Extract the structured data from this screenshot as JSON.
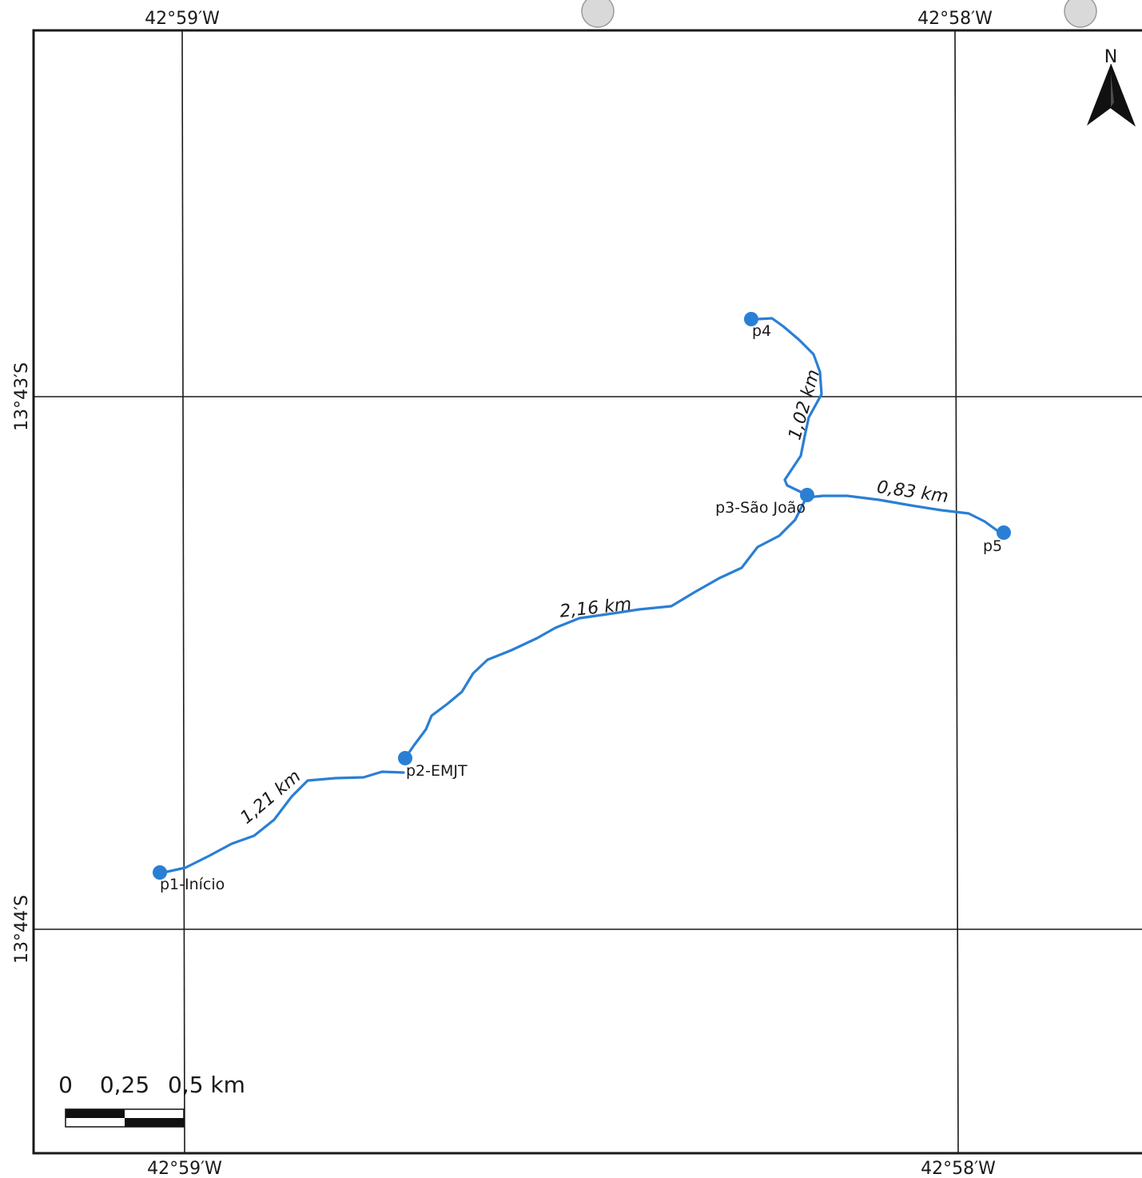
{
  "map": {
    "north_label": "N",
    "top_ticks": [
      "42°59′W",
      "42°58′W"
    ],
    "bottom_ticks": [
      "42°59′W",
      "42°58′W"
    ],
    "left_ticks": [
      "13°43′S",
      "13°44′S"
    ],
    "points": [
      {
        "id": "p1",
        "label": "p1-Início"
      },
      {
        "id": "p2",
        "label": "p2-EMJT"
      },
      {
        "id": "p3",
        "label": "p3-São João"
      },
      {
        "id": "p4",
        "label": "p4"
      },
      {
        "id": "p5",
        "label": "p5"
      }
    ],
    "segments": [
      {
        "id": "p1-p2",
        "distance": "1,21 km"
      },
      {
        "id": "p2-p3",
        "distance": "2,16 km"
      },
      {
        "id": "p3-p4",
        "distance": "1,02 km"
      },
      {
        "id": "p3-p5",
        "distance": "0,83 km"
      }
    ],
    "scale_bar": {
      "labels": [
        "0",
        "0,25",
        "0,5 km"
      ]
    },
    "route_color": "#2a7fd4"
  }
}
